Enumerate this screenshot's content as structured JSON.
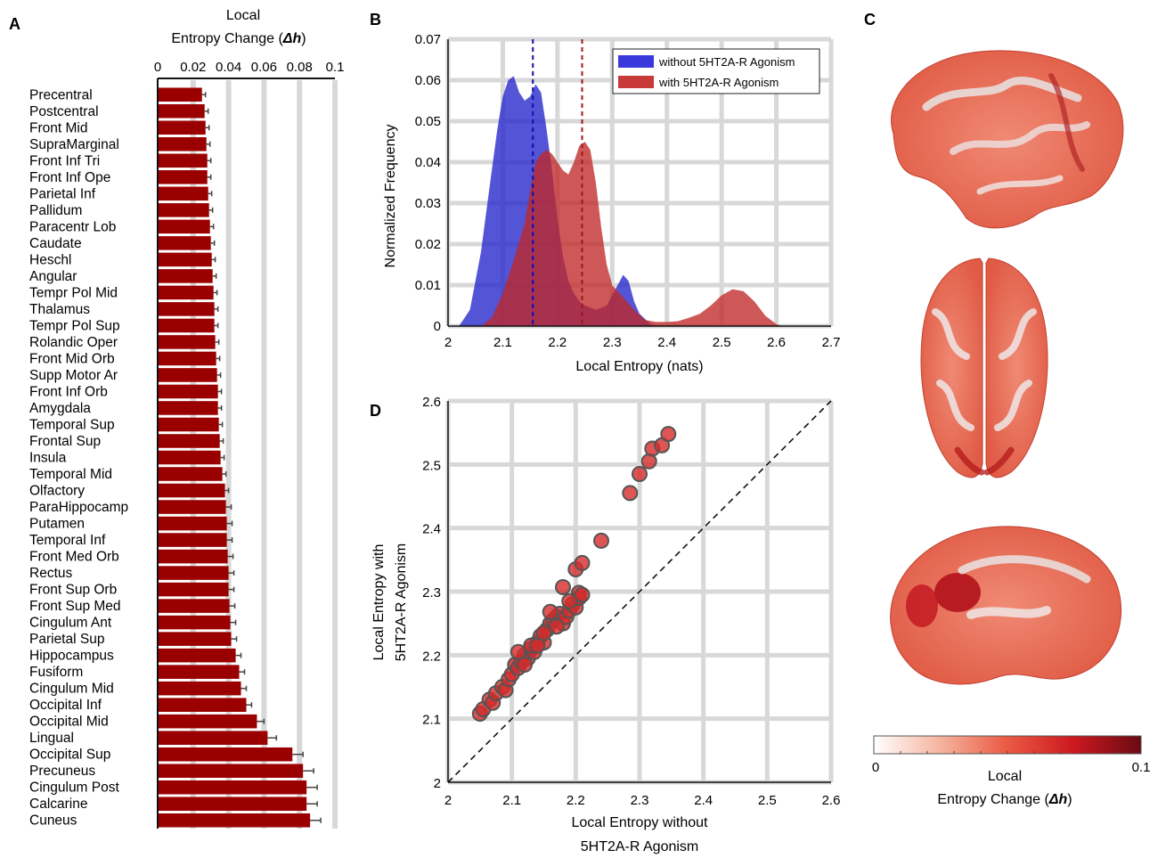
{
  "panels": {
    "a": "A",
    "b": "B",
    "c": "C",
    "d": "D"
  },
  "colors": {
    "bar": "#9b0000",
    "blue": "#2f2fd0",
    "red": "#c33030",
    "grid": "#d8d8d8"
  },
  "chart_data": [
    {
      "type": "bar",
      "orientation": "horizontal",
      "title_line1": "Local",
      "title_line2": "Entropy Change (",
      "title_symbol": "Δh",
      "title_close": ")",
      "xlim": [
        0,
        0.1
      ],
      "xticks": [
        "0",
        "0.02",
        "0.04",
        "0.06",
        "0.08",
        "0.1"
      ],
      "categories": [
        "Precentral",
        "Postcentral",
        "Front Mid",
        "SupraMarginal",
        "Front Inf Tri",
        "Front Inf Ope",
        "Parietal Inf",
        "Pallidum",
        "Paracentr Lob",
        "Caudate",
        "Heschl",
        "Angular",
        "Tempr Pol Mid",
        "Thalamus",
        "Tempr Pol Sup",
        "Rolandic Oper",
        "Front Mid Orb",
        "Supp Motor Ar",
        "Front Inf Orb",
        "Amygdala",
        "Temporal Sup",
        "Frontal Sup",
        "Insula",
        "Temporal Mid",
        "Olfactory",
        "ParaHippocamp",
        "Putamen",
        "Temporal Inf",
        "Front Med Orb",
        "Rectus",
        "Front Sup Orb",
        "Front Sup Med",
        "Cingulum Ant",
        "Parietal Sup",
        "Hippocampus",
        "Fusiform",
        "Cingulum Mid",
        "Occipital Inf",
        "Occipital Mid",
        "Lingual",
        "Occipital Sup",
        "Precuneus",
        "Cingulum Post",
        "Calcarine",
        "Cuneus"
      ],
      "values": [
        0.025,
        0.0265,
        0.027,
        0.0275,
        0.028,
        0.028,
        0.0285,
        0.029,
        0.0295,
        0.03,
        0.0305,
        0.031,
        0.0315,
        0.032,
        0.032,
        0.0325,
        0.033,
        0.0335,
        0.034,
        0.034,
        0.0345,
        0.035,
        0.0355,
        0.0365,
        0.038,
        0.0385,
        0.039,
        0.039,
        0.0395,
        0.04,
        0.04,
        0.0405,
        0.041,
        0.0415,
        0.044,
        0.046,
        0.047,
        0.05,
        0.056,
        0.062,
        0.076,
        0.082,
        0.084,
        0.084,
        0.086
      ],
      "errors": [
        0.002,
        0.002,
        0.002,
        0.002,
        0.002,
        0.002,
        0.002,
        0.002,
        0.002,
        0.002,
        0.002,
        0.002,
        0.002,
        0.002,
        0.002,
        0.002,
        0.002,
        0.002,
        0.002,
        0.002,
        0.002,
        0.002,
        0.002,
        0.002,
        0.002,
        0.003,
        0.003,
        0.003,
        0.003,
        0.003,
        0.003,
        0.003,
        0.003,
        0.003,
        0.003,
        0.003,
        0.003,
        0.003,
        0.004,
        0.005,
        0.006,
        0.006,
        0.006,
        0.006,
        0.006
      ]
    },
    {
      "type": "area",
      "xlabel": "Local Entropy (nats)",
      "ylabel": "Normalized Frequency",
      "xlim": [
        2,
        2.7
      ],
      "ylim": [
        0,
        0.07
      ],
      "xticks": [
        "2",
        "2.1",
        "2.2",
        "2.3",
        "2.4",
        "2.5",
        "2.6",
        "2.7"
      ],
      "yticks": [
        "0",
        "0.01",
        "0.02",
        "0.03",
        "0.04",
        "0.05",
        "0.06",
        "0.07"
      ],
      "legend_position": "top-right",
      "series": [
        {
          "name": "without 5HT2A-R Agonism",
          "mean": 2.155,
          "x": [
            2.02,
            2.04,
            2.06,
            2.08,
            2.09,
            2.1,
            2.11,
            2.12,
            2.13,
            2.14,
            2.15,
            2.16,
            2.17,
            2.18,
            2.19,
            2.2,
            2.21,
            2.22,
            2.23,
            2.24,
            2.25,
            2.27,
            2.29,
            2.31,
            2.32,
            2.33,
            2.34,
            2.35,
            2.37,
            2.38
          ],
          "y": [
            0,
            0.004,
            0.018,
            0.038,
            0.048,
            0.056,
            0.06,
            0.061,
            0.057,
            0.055,
            0.056,
            0.059,
            0.057,
            0.048,
            0.038,
            0.026,
            0.017,
            0.011,
            0.008,
            0.006,
            0.005,
            0.004,
            0.005,
            0.01,
            0.0125,
            0.011,
            0.006,
            0.003,
            0.0005,
            0
          ]
        },
        {
          "name": "with 5HT2A-R Agonism",
          "mean": 2.245,
          "x": [
            2.06,
            2.08,
            2.1,
            2.12,
            2.14,
            2.15,
            2.16,
            2.17,
            2.18,
            2.19,
            2.2,
            2.21,
            2.22,
            2.23,
            2.24,
            2.25,
            2.26,
            2.27,
            2.28,
            2.29,
            2.3,
            2.32,
            2.34,
            2.36,
            2.38,
            2.4,
            2.42,
            2.44,
            2.46,
            2.48,
            2.5,
            2.52,
            2.54,
            2.56,
            2.58,
            2.6,
            2.61
          ],
          "y": [
            0,
            0.002,
            0.008,
            0.016,
            0.025,
            0.033,
            0.04,
            0.042,
            0.043,
            0.042,
            0.04,
            0.038,
            0.037,
            0.04,
            0.044,
            0.045,
            0.043,
            0.035,
            0.024,
            0.015,
            0.01,
            0.007,
            0.004,
            0.0015,
            0.001,
            0.001,
            0.0012,
            0.002,
            0.003,
            0.005,
            0.0075,
            0.009,
            0.0085,
            0.006,
            0.0025,
            0.0005,
            0
          ]
        }
      ]
    },
    {
      "type": "scatter",
      "xlabel_line1": "Local Entropy without",
      "xlabel_line2": "5HT2A-R Agonism",
      "ylabel_line1": "Local Entropy with",
      "ylabel_line2": "5HT2A-R Agonism",
      "xlim": [
        2,
        2.6
      ],
      "ylim": [
        2,
        2.6
      ],
      "xticks": [
        "2",
        "2.1",
        "2.2",
        "2.3",
        "2.4",
        "2.5",
        "2.6"
      ],
      "yticks": [
        "2",
        "2.1",
        "2.2",
        "2.3",
        "2.4",
        "2.5",
        "2.6"
      ],
      "identity_line": true,
      "x": [
        2.05,
        2.055,
        2.065,
        2.07,
        2.075,
        2.085,
        2.09,
        2.095,
        2.1,
        2.105,
        2.11,
        2.115,
        2.12,
        2.125,
        2.13,
        2.135,
        2.14,
        2.145,
        2.15,
        2.155,
        2.16,
        2.165,
        2.17,
        2.175,
        2.18,
        2.185,
        2.19,
        2.195,
        2.2,
        2.205,
        2.205,
        2.21,
        2.2,
        2.21,
        2.18,
        2.24,
        2.285,
        2.3,
        2.315,
        2.32,
        2.335,
        2.345,
        2.11,
        2.13,
        2.15,
        2.16,
        2.12,
        2.14,
        2.17,
        2.19
      ],
      "y": [
        2.108,
        2.115,
        2.13,
        2.125,
        2.14,
        2.15,
        2.145,
        2.162,
        2.17,
        2.185,
        2.18,
        2.19,
        2.2,
        2.195,
        2.21,
        2.205,
        2.22,
        2.23,
        2.22,
        2.24,
        2.25,
        2.255,
        2.26,
        2.265,
        2.25,
        2.26,
        2.27,
        2.28,
        2.275,
        2.29,
        2.298,
        2.295,
        2.335,
        2.345,
        2.307,
        2.38,
        2.455,
        2.485,
        2.505,
        2.525,
        2.53,
        2.548,
        2.205,
        2.215,
        2.235,
        2.268,
        2.185,
        2.215,
        2.245,
        2.285
      ]
    },
    {
      "type": "heatmap",
      "description_only_colorbar": true,
      "colorbar_label_line1": "Local",
      "colorbar_label_line2": "Entropy Change (",
      "colorbar_symbol": "Δh",
      "colorbar_close": ")",
      "colorbar_min": "0",
      "colorbar_max": "0.1",
      "colormap": [
        "#ffffff",
        "#f2a08a",
        "#e8412e",
        "#c4141c",
        "#6e0a12"
      ]
    }
  ]
}
